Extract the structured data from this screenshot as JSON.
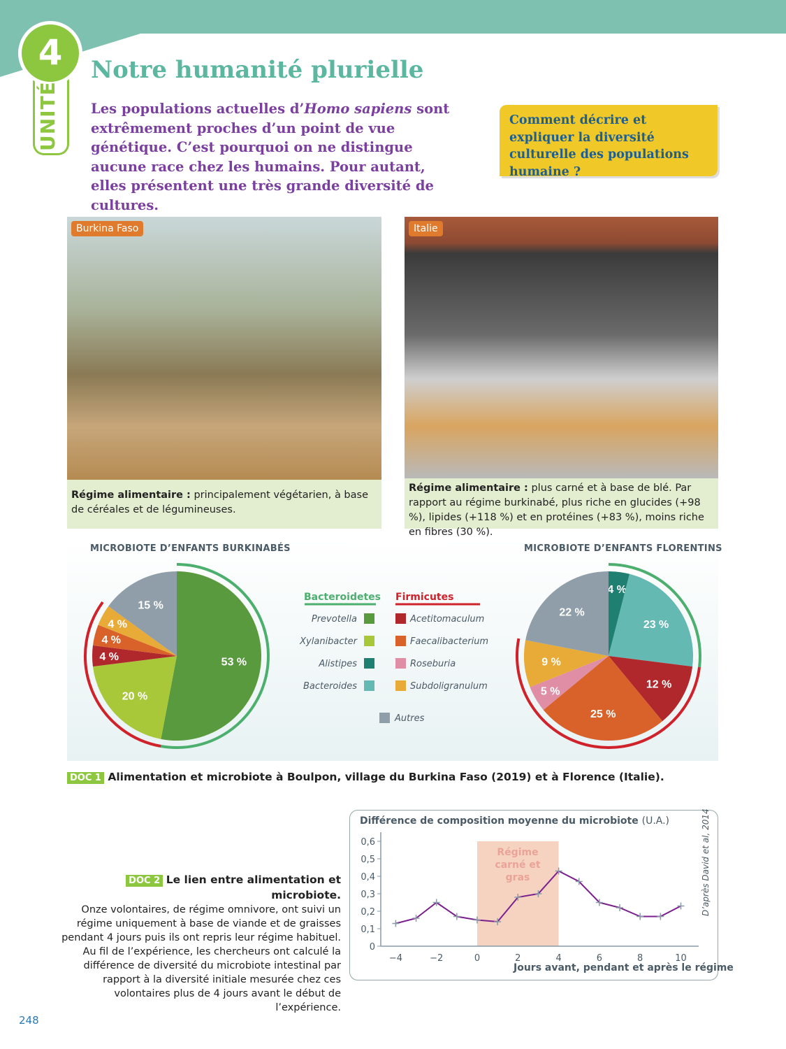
{
  "header": {
    "unit_number": "4",
    "unit_label": "UNITÉ",
    "title": "Notre humanité plurielle"
  },
  "intro": {
    "before": "Les populations actuelles d’",
    "italic": "Homo sapiens",
    "after": " sont extrêmement proches d’un point de vue génétique. C’est pourquoi on ne distingue aucune race chez les humains. Pour autant, elles présentent une très grande diversité de cultures."
  },
  "question": "Comment décrire et expliquer la diversité culturelle des populations humaine ?",
  "photos": [
    {
      "tag": "Burkina Faso",
      "caption_bold": "Régime alimentaire :",
      "caption": " principalement végétarien, à base de céréales et de légumineuses."
    },
    {
      "tag": "Italie",
      "caption_bold": "Régime alimentaire :",
      "caption": " plus carné et à base de blé. Par rapport au régime burkinabé, plus riche en glucides (+98 %), lipides (+118 %) et en protéines (+83 %), moins riche en fibres (30 %)."
    }
  ],
  "legend": {
    "groups": [
      {
        "name": "Bacteroidetes",
        "color": "#4caf6e"
      },
      {
        "name": "Firmicutes",
        "color": "#d0222b"
      }
    ],
    "items": [
      {
        "name": "Prevotella",
        "color": "#5a9a3e"
      },
      {
        "name": "Xylanibacter",
        "color": "#a8c83a"
      },
      {
        "name": "Alistipes",
        "color": "#1f7f70"
      },
      {
        "name": "Bacteroides",
        "color": "#64b9b3"
      },
      {
        "name": "Acetitomaculum",
        "color": "#b0282c"
      },
      {
        "name": "Faecalibacterium",
        "color": "#d9622b"
      },
      {
        "name": "Roseburia",
        "color": "#e08ea5"
      },
      {
        "name": "Subdoligranulum",
        "color": "#e8ab38"
      },
      {
        "name": "Autres",
        "color": "#8f9ea8"
      }
    ]
  },
  "chart_data": [
    {
      "type": "pie",
      "title": "MICROBIOTE D’ENFANTS BURKINABÉS",
      "slices": [
        {
          "label": "Prevotella",
          "value": 53
        },
        {
          "label": "Xylanibacter",
          "value": 20
        },
        {
          "label": "Acetitomaculum",
          "value": 4
        },
        {
          "label": "Faecalibacterium",
          "value": 4
        },
        {
          "label": "Subdoligranulum",
          "value": 4
        },
        {
          "label": "Autres",
          "value": 15
        }
      ]
    },
    {
      "type": "pie",
      "title": "MICROBIOTE D’ENFANTS FLORENTINS",
      "slices": [
        {
          "label": "Alistipes",
          "value": 4
        },
        {
          "label": "Bacteroides",
          "value": 23
        },
        {
          "label": "Acetitomaculum",
          "value": 12
        },
        {
          "label": "Faecalibacterium",
          "value": 25
        },
        {
          "label": "Roseburia",
          "value": 5
        },
        {
          "label": "Subdoligranulum",
          "value": 9
        },
        {
          "label": "Autres",
          "value": 22
        }
      ]
    },
    {
      "type": "line",
      "title": "Différence de composition moyenne du microbiote",
      "title_unit": "(U.A.)",
      "xlabel": "Jours avant, pendant et après le régime",
      "xlim": [
        -4,
        10
      ],
      "ylim": [
        0,
        0.6
      ],
      "xticks": [
        "−4",
        "−2",
        "0",
        "2",
        "4",
        "6",
        "8",
        "10"
      ],
      "yticks": [
        "0",
        "0,1",
        "0,2",
        "0,3",
        "0,4",
        "0,5",
        "0,6"
      ],
      "x": [
        -4,
        -3,
        -2,
        -1,
        0,
        1,
        2,
        3,
        4,
        5,
        6,
        7,
        8,
        9,
        10
      ],
      "y": [
        0.13,
        0.16,
        0.25,
        0.17,
        0.15,
        0.14,
        0.28,
        0.3,
        0.43,
        0.37,
        0.25,
        0.22,
        0.17,
        0.17,
        0.23
      ],
      "line_color": "#7b1f8f",
      "highlight": {
        "from": 0,
        "to": 4,
        "label": "Régime carné et gras"
      },
      "source": "D’après David et al, 2014"
    }
  ],
  "doc1": {
    "tag": "DOC 1",
    "text": "Alimentation et microbiote à Boulpon, village du Burkina Faso (2019) et à Florence (Italie)."
  },
  "doc2": {
    "tag": "DOC 2",
    "title": "Le lien entre alimentation et microbiote.",
    "text": "Onze volontaires, de régime omnivore, ont suivi un régime uniquement à base de viande et de graisses pendant 4 jours puis ils ont repris leur régime habituel. Au fil de l’expérience, les chercheurs ont calculé la différence de diversité du microbiote intestinal par rapport à la diversité initiale mesurée chez ces volontaires plus de 4 jours avant le début de l’expérience."
  },
  "page_number": "248"
}
